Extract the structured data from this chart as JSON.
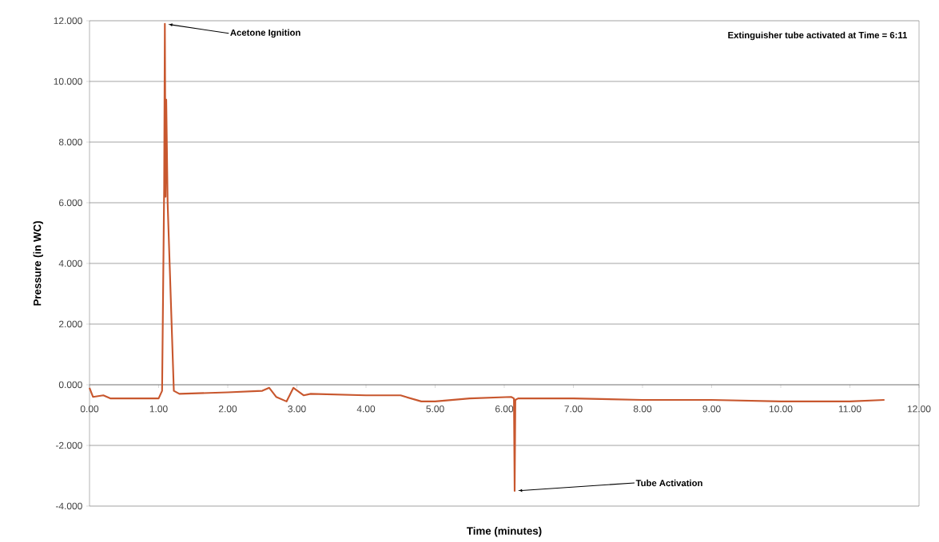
{
  "chart_data": {
    "type": "line",
    "xlabel": "Time (minutes)",
    "ylabel": "Pressure (in WC)",
    "x": [
      0,
      0.05,
      0.2,
      0.3,
      1.0,
      1.05,
      1.08,
      1.09,
      1.1,
      1.11,
      1.13,
      1.22,
      1.3,
      2.0,
      2.5,
      2.6,
      2.7,
      2.85,
      2.95,
      3.1,
      3.2,
      4.0,
      4.5,
      4.8,
      5.0,
      5.5,
      6.1,
      6.14,
      6.15,
      6.16,
      6.2,
      7.0,
      8.0,
      9.0,
      10.0,
      11.0,
      11.5
    ],
    "series": [
      {
        "color": "#c8572e",
        "values": [
          -0.1,
          -0.4,
          -0.35,
          -0.45,
          -0.45,
          -0.2,
          6.5,
          11.9,
          6.2,
          9.4,
          6.0,
          -0.2,
          -0.3,
          -0.25,
          -0.2,
          -0.1,
          -0.4,
          -0.55,
          -0.1,
          -0.35,
          -0.3,
          -0.35,
          -0.35,
          -0.55,
          -0.55,
          -0.45,
          -0.4,
          -0.45,
          -3.5,
          -0.5,
          -0.45,
          -0.45,
          -0.5,
          -0.5,
          -0.55,
          -0.55,
          -0.5
        ]
      }
    ],
    "xlim": [
      0,
      12
    ],
    "ylim": [
      -4,
      12
    ],
    "xticks": [
      {
        "value": 0,
        "label": "0.00"
      },
      {
        "value": 1,
        "label": "1.00"
      },
      {
        "value": 2,
        "label": "2.00"
      },
      {
        "value": 3,
        "label": "3.00"
      },
      {
        "value": 4,
        "label": "4.00"
      },
      {
        "value": 5,
        "label": "5.00"
      },
      {
        "value": 6,
        "label": "6.00"
      },
      {
        "value": 7,
        "label": "7.00"
      },
      {
        "value": 8,
        "label": "8.00"
      },
      {
        "value": 9,
        "label": "9.00"
      },
      {
        "value": 10,
        "label": "10.00"
      },
      {
        "value": 11,
        "label": "11.00"
      },
      {
        "value": 12,
        "label": "12.00"
      }
    ],
    "yticks": [
      {
        "value": -4,
        "label": "-4.000"
      },
      {
        "value": -2,
        "label": "-2.000"
      },
      {
        "value": 0,
        "label": "0.000"
      },
      {
        "value": 2,
        "label": "2.000"
      },
      {
        "value": 4,
        "label": "4.000"
      },
      {
        "value": 6,
        "label": "6.000"
      },
      {
        "value": 8,
        "label": "8.000"
      },
      {
        "value": 10,
        "label": "10.000"
      },
      {
        "value": 12,
        "label": "12.000"
      }
    ],
    "grid": "y",
    "annotations": [
      {
        "text": "Acetone Ignition",
        "x": 1.09,
        "y": 11.9
      },
      {
        "text": "Tube Activation",
        "x": 6.15,
        "y": -3.5
      },
      "Extinguisher tube activated at Time = 6:11"
    ]
  }
}
